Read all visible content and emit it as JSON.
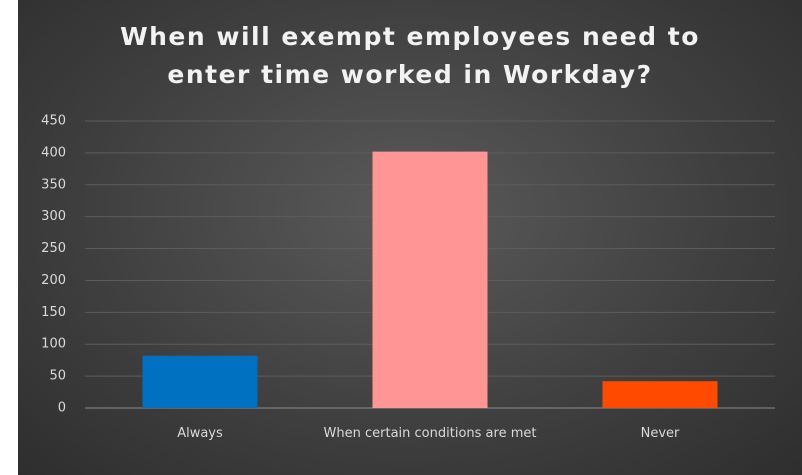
{
  "chart_data": {
    "type": "bar",
    "title": "When will exempt employees need to enter time worked in Workday?",
    "categories": [
      "Always",
      "When certain conditions are met",
      "Never"
    ],
    "values": [
      82,
      402,
      42
    ],
    "colors": [
      "#0070c0",
      "#ff9594",
      "#ff4a00"
    ],
    "ylim": [
      0,
      450
    ],
    "yticks": [
      0,
      50,
      100,
      150,
      200,
      250,
      300,
      350,
      400,
      450
    ],
    "grid": true
  }
}
